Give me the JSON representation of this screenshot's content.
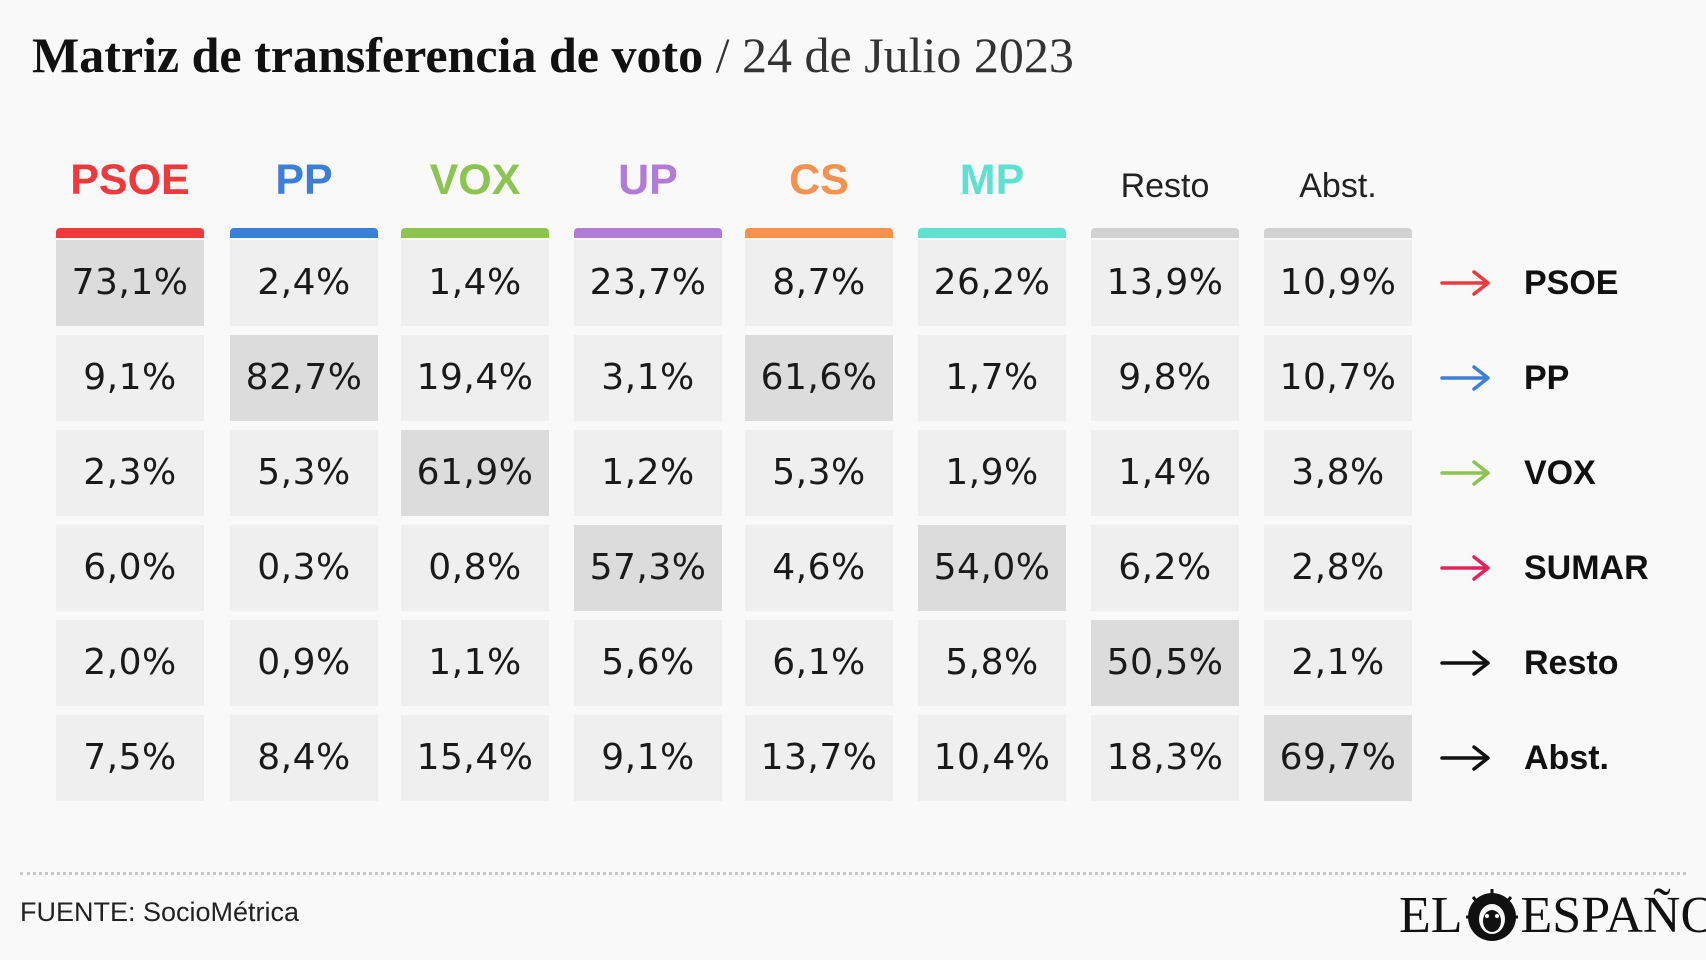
{
  "header": {
    "title_main": "Matriz de transferencia de voto",
    "separator": "/",
    "title_date": "24 de Julio 2023"
  },
  "colors": {
    "PSOE": "#f0393c",
    "PP": "#3b7fd6",
    "VOX": "#8dc451",
    "UP": "#b27bd6",
    "CS": "#f7914f",
    "MP": "#5fe0d0",
    "Resto": "#d2d2d2",
    "Abst.": "#d2d2d2",
    "SUMAR": "#e0245e",
    "black": "#111111"
  },
  "chart_data": {
    "type": "table",
    "title": "Matriz de transferencia de voto / 24 de Julio 2023",
    "columns": [
      "PSOE",
      "PP",
      "VOX",
      "UP",
      "CS",
      "MP",
      "Resto",
      "Abst."
    ],
    "rows": [
      "PSOE",
      "PP",
      "VOX",
      "SUMAR",
      "Resto",
      "Abst."
    ],
    "values": [
      [
        "73,1%",
        "2,4%",
        "1,4%",
        "23,7%",
        "8,7%",
        "26,2%",
        "13,9%",
        "10,9%"
      ],
      [
        "9,1%",
        "82,7%",
        "19,4%",
        "3,1%",
        "61,6%",
        "1,7%",
        "9,8%",
        "10,7%"
      ],
      [
        "2,3%",
        "5,3%",
        "61,9%",
        "1,2%",
        "5,3%",
        "1,9%",
        "1,4%",
        "3,8%"
      ],
      [
        "6,0%",
        "0,3%",
        "0,8%",
        "57,3%",
        "4,6%",
        "54,0%",
        "6,2%",
        "2,8%"
      ],
      [
        "2,0%",
        "0,9%",
        "1,1%",
        "5,6%",
        "6,1%",
        "5,8%",
        "50,5%",
        "2,1%"
      ],
      [
        "7,5%",
        "8,4%",
        "15,4%",
        "9,1%",
        "13,7%",
        "10,4%",
        "18,3%",
        "69,7%"
      ]
    ],
    "highlighted": [
      [
        0,
        0
      ],
      [
        1,
        1
      ],
      [
        1,
        4
      ],
      [
        2,
        2
      ],
      [
        3,
        3
      ],
      [
        3,
        5
      ],
      [
        4,
        6
      ],
      [
        5,
        7
      ]
    ],
    "column_colors": [
      "#f0393c",
      "#3b7fd6",
      "#8dc451",
      "#b27bd6",
      "#f7914f",
      "#5fe0d0",
      "#d2d2d2",
      "#d2d2d2"
    ],
    "column_text_colors": [
      "#f0393c",
      "#3b7fd6",
      "#8dc451",
      "#b27bd6",
      "#f7914f",
      "#5fe0d0",
      "#222222",
      "#222222"
    ],
    "row_arrow_colors": [
      "#f0393c",
      "#3b7fd6",
      "#8dc451",
      "#e0245e",
      "#111111",
      "#111111"
    ]
  },
  "footer": {
    "source": "FUENTE: SocioMétrica",
    "logo_left": "EL",
    "logo_right": "ESPAÑOL"
  }
}
